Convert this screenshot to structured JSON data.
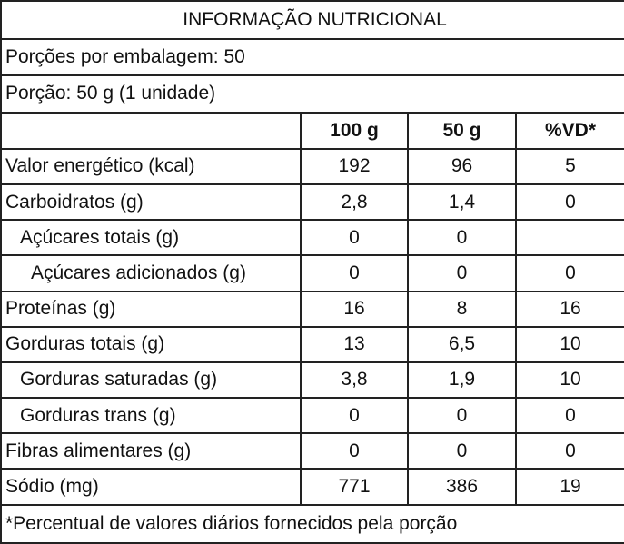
{
  "title": "INFORMAÇÃO NUTRICIONAL",
  "servings": "Porções por embalagem: 50",
  "portion": "Porção: 50 g (1 unidade)",
  "header": [
    "100 g",
    "50 g",
    "%VD*"
  ],
  "rows": [
    {
      "label": "Valor energético (kcal)",
      "cells": [
        "192",
        "96",
        "5"
      ]
    },
    {
      "label": "Carboidratos (g)",
      "cells": [
        "2,8",
        "1,4",
        "0"
      ]
    },
    {
      "label": "Açúcares totais (g)",
      "cells": [
        "0",
        "0"
      ]
    },
    {
      "label": "Açúcares adicionados (g)",
      "cells": [
        "0",
        "0",
        "0"
      ]
    },
    {
      "label": "Proteínas (g)",
      "cells": [
        "16",
        "8",
        "16"
      ]
    },
    {
      "label": "Gorduras totais (g)",
      "cells": [
        "13",
        "6,5",
        "10"
      ]
    },
    {
      "label": "Gorduras saturadas (g)",
      "cells": [
        "3,8",
        "1,9",
        "10"
      ]
    },
    {
      "label": "Gorduras trans (g)",
      "cells": [
        "0",
        "0",
        "0"
      ]
    },
    {
      "label": "Fibras alimentares (g)",
      "cells": [
        "0",
        "0",
        "0"
      ]
    },
    {
      "label": "Sódio (mg)",
      "cells": [
        "771",
        "386",
        "19"
      ]
    }
  ],
  "footnote": "*Percentual de valores diários fornecidos pela porção"
}
